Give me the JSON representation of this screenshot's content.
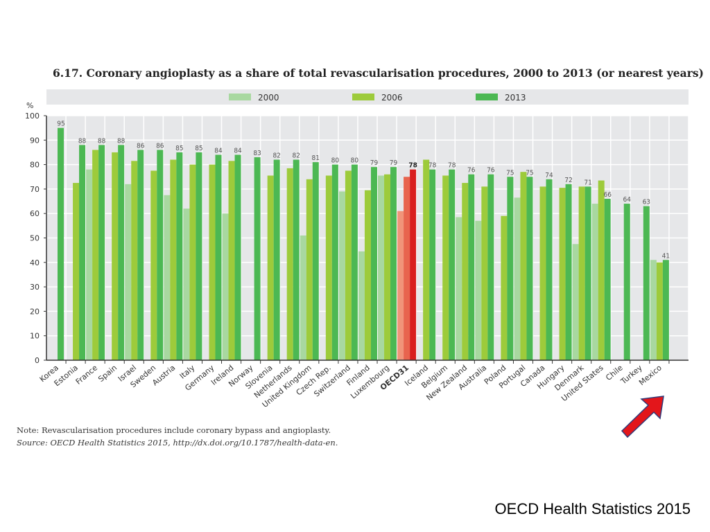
{
  "chart_data": {
    "type": "bar",
    "title": "6.17. Coronary angioplasty as a share of total revascularisation procedures, 2000 to 2013 (or nearest years)",
    "ylabel": "%",
    "ylim": [
      0,
      100
    ],
    "yticks": [
      0,
      10,
      20,
      30,
      40,
      50,
      60,
      70,
      80,
      90,
      100
    ],
    "grid": true,
    "legend_position": "top",
    "categories": [
      "Korea",
      "Estonia",
      "France",
      "Spain",
      "Israel",
      "Sweden",
      "Austria",
      "Italy",
      "Germany",
      "Ireland",
      "Norway",
      "Slovenia",
      "Netherlands",
      "United Kingdom",
      "Czech Rep.",
      "Switzerland",
      "Finland",
      "Luxembourg",
      "OECD31",
      "Iceland",
      "Belgium",
      "New Zealand",
      "Australia",
      "Poland",
      "Portugal",
      "Canada",
      "Hungary",
      "Denmark",
      "United States",
      "Chile",
      "Turkey",
      "Mexico"
    ],
    "highlight_category": "OECD31",
    "series": [
      {
        "name": "2000",
        "color": "#a8d8a0",
        "highlight_color": "#f19479",
        "values": [
          null,
          null,
          78,
          null,
          72,
          null,
          67.5,
          62,
          null,
          60,
          null,
          null,
          null,
          51,
          null,
          69,
          44.5,
          75.5,
          61,
          null,
          null,
          58.5,
          57,
          null,
          66.5,
          null,
          null,
          47.5,
          64,
          null,
          null,
          41
        ]
      },
      {
        "name": "2006",
        "color": "#9dcb3b",
        "highlight_color": "#e8644e",
        "values": [
          null,
          72.5,
          86,
          85,
          81.5,
          77.5,
          82,
          80,
          80,
          81.5,
          null,
          75.5,
          78.5,
          74,
          75.5,
          77.5,
          69.5,
          76,
          75,
          82,
          75.5,
          72.5,
          71,
          59,
          77,
          71,
          70.5,
          71,
          73.5,
          null,
          null,
          40
        ]
      },
      {
        "name": "2013",
        "color": "#4cb853",
        "highlight_color": "#d91e1e",
        "values": [
          95,
          88,
          88,
          88,
          86,
          86,
          85,
          85,
          84,
          84,
          83,
          82,
          82,
          81,
          80,
          80,
          79,
          79,
          78,
          78,
          78,
          76,
          76,
          75,
          75,
          74,
          72,
          71,
          66,
          64,
          63,
          41
        ]
      }
    ],
    "data_labels": [
      "95",
      "88",
      "88",
      "88",
      "86",
      "86",
      "85",
      "85",
      "84",
      "84",
      "83",
      "82",
      "82",
      "81",
      "80",
      "80",
      "79",
      "79",
      "78",
      "78",
      "78",
      "76",
      "76",
      "75",
      "75",
      "74",
      "72",
      "71",
      "66",
      "64",
      "63",
      "41"
    ]
  },
  "note": "Note: Revascularisation procedures include coronary bypass and angioplasty.",
  "source": "Source: OECD Health Statistics 2015, http://dx.doi.org/10.1787/health-data-en.",
  "footer": "OECD Health Statistics 2015",
  "annotation": {
    "type": "arrow",
    "color": "#e3161b",
    "points_to": "Mexico"
  }
}
